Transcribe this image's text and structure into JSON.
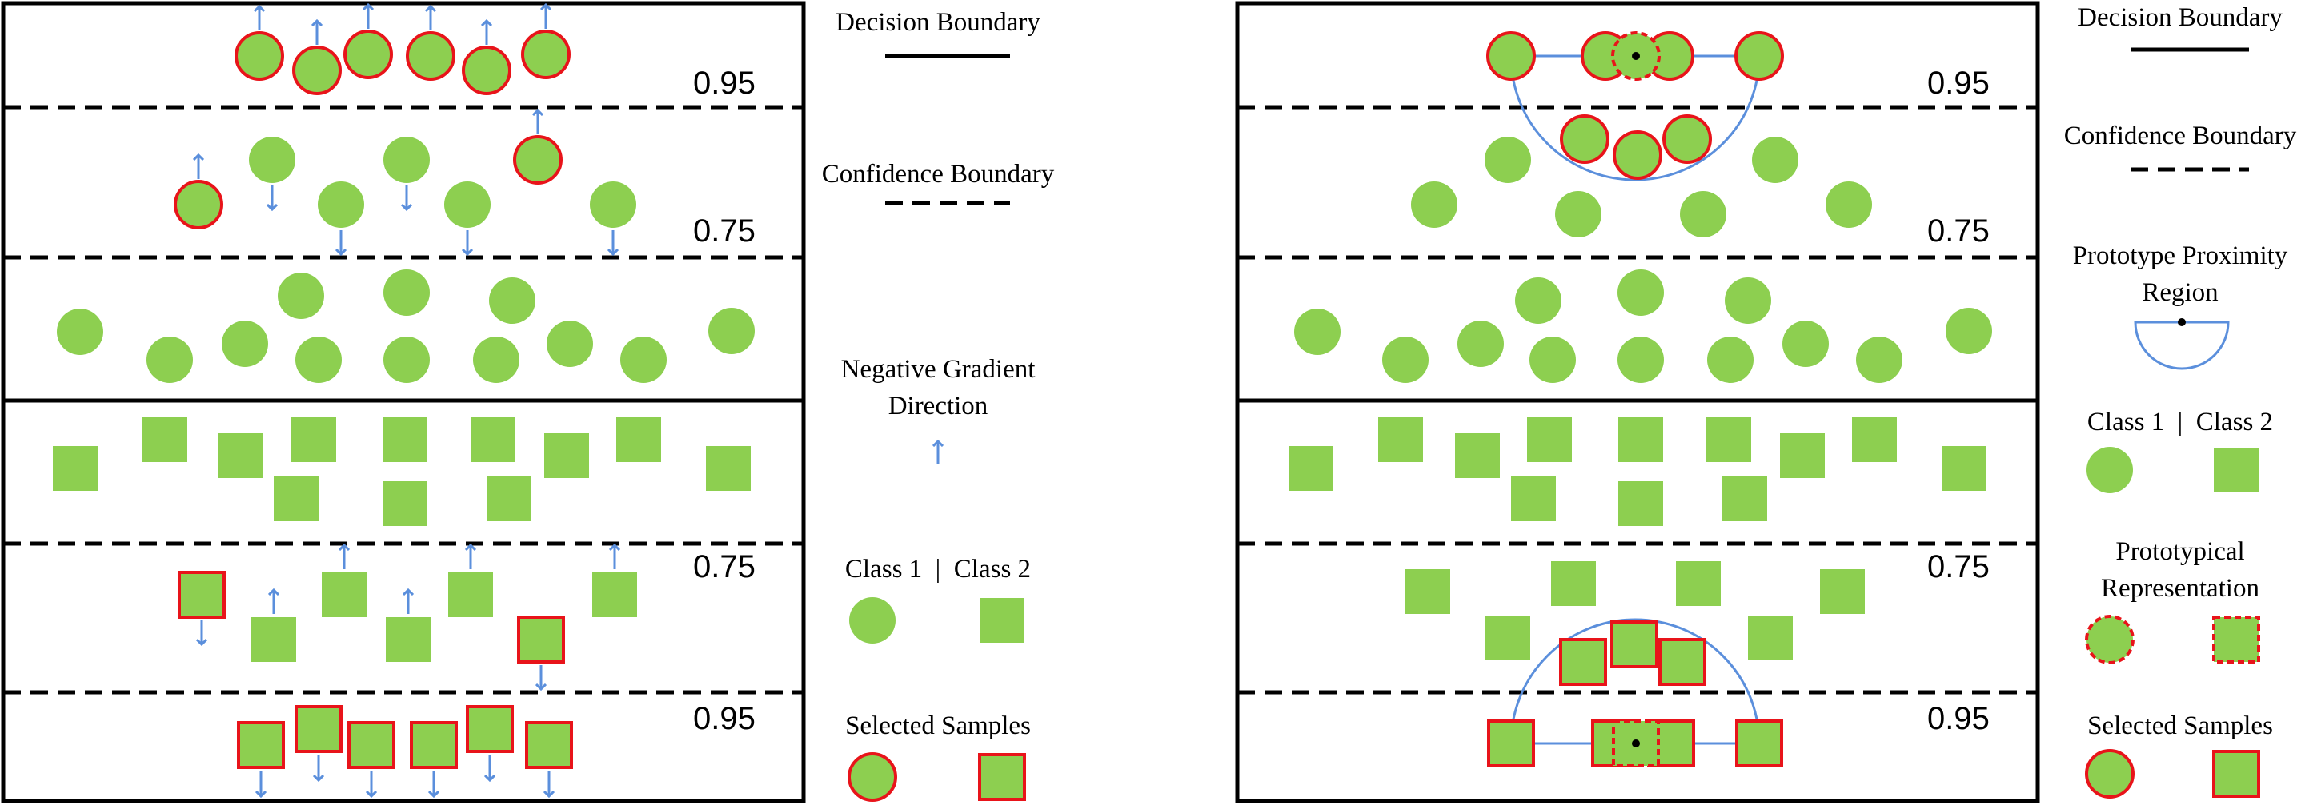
{
  "thresholds": {
    "upper_095": "0.95",
    "upper_075": "0.75",
    "lower_075": "0.75",
    "lower_095": "0.95"
  },
  "left_legend": {
    "decision_boundary": "Decision Boundary",
    "confidence_boundary": "Confidence Boundary",
    "negative_gradient_line1": "Negative Gradient",
    "negative_gradient_line2": "Direction",
    "class_label": "Class 1  |  Class 2",
    "selected_samples": "Selected Samples"
  },
  "right_legend": {
    "decision_boundary": "Decision Boundary",
    "confidence_boundary": "Confidence Boundary",
    "proximity_line1": "Prototype Proximity",
    "proximity_line2": "Region",
    "class_label": "Class 1  |  Class 2",
    "prototypical_line1": "Prototypical",
    "prototypical_line2": "Representation",
    "selected_samples": "Selected Samples"
  },
  "colors": {
    "fill": "#8dcf50",
    "selected_stroke": "#e8141a",
    "arrow": "#5b8fdc",
    "region": "#5b8fdc",
    "line": "#000000"
  }
}
